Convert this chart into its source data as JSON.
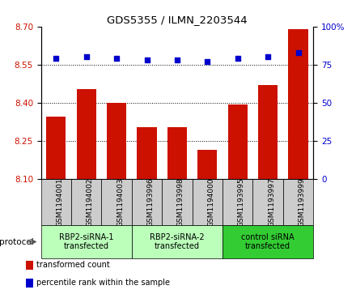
{
  "title": "GDS5355 / ILMN_2203544",
  "samples": [
    "GSM1194001",
    "GSM1194002",
    "GSM1194003",
    "GSM1193996",
    "GSM1193998",
    "GSM1194000",
    "GSM1193995",
    "GSM1193997",
    "GSM1193999"
  ],
  "bar_values": [
    8.345,
    8.455,
    8.4,
    8.305,
    8.305,
    8.215,
    8.395,
    8.47,
    8.69
  ],
  "percentile_values": [
    79,
    80,
    79,
    78,
    78,
    77,
    79,
    80,
    83
  ],
  "bar_color": "#cc1100",
  "dot_color": "#0000cc",
  "ylim_left": [
    8.1,
    8.7
  ],
  "ylim_right": [
    0,
    100
  ],
  "yticks_left": [
    8.1,
    8.25,
    8.4,
    8.55,
    8.7
  ],
  "yticks_right": [
    0,
    25,
    50,
    75,
    100
  ],
  "grid_lines": [
    8.25,
    8.4,
    8.55
  ],
  "bar_width": 0.65,
  "groups": [
    {
      "label": "RBP2-siRNA-1\ntransfected",
      "start": 0,
      "end": 2,
      "color": "#bbffbb"
    },
    {
      "label": "RBP2-siRNA-2\ntransfected",
      "start": 3,
      "end": 5,
      "color": "#bbffbb"
    },
    {
      "label": "control siRNA\ntransfected",
      "start": 6,
      "end": 8,
      "color": "#33cc33"
    }
  ],
  "protocol_label": "protocol",
  "legend_items": [
    {
      "label": "transformed count",
      "color": "#cc1100",
      "marker": "s"
    },
    {
      "label": "percentile rank within the sample",
      "color": "#0000cc",
      "marker": "s"
    }
  ],
  "left_tick_color": "#cc1100",
  "right_tick_color": "#0000cc",
  "xtick_bg": "#cccccc",
  "plot_bg": "#ffffff"
}
